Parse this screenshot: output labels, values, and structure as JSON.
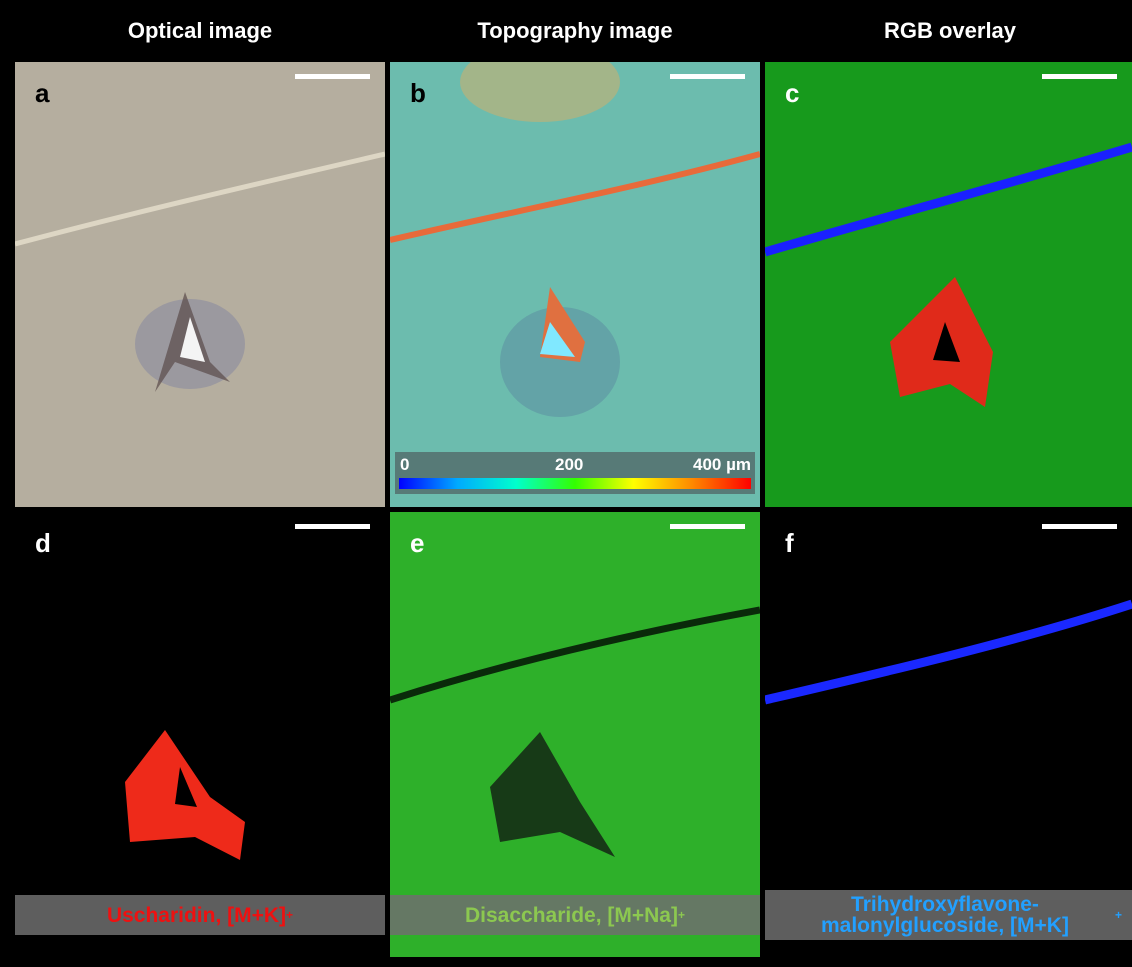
{
  "headers": [
    "Optical image",
    "Topography image",
    "RGB overlay"
  ],
  "panels": [
    {
      "letter": "a"
    },
    {
      "letter": "b",
      "colorbar_ticks": [
        "0",
        "200",
        "400 µm"
      ]
    },
    {
      "letter": "c"
    },
    {
      "letter": "d",
      "label": "Uscharidin, [M+K]",
      "label_sup": "+"
    },
    {
      "letter": "e",
      "label": "Disaccharide, [M+Na]",
      "label_sup": "+"
    },
    {
      "letter": "f",
      "label": "Trihydroxyflavone-malonylglucoside, [M+K]",
      "label_sup": "+"
    }
  ]
}
